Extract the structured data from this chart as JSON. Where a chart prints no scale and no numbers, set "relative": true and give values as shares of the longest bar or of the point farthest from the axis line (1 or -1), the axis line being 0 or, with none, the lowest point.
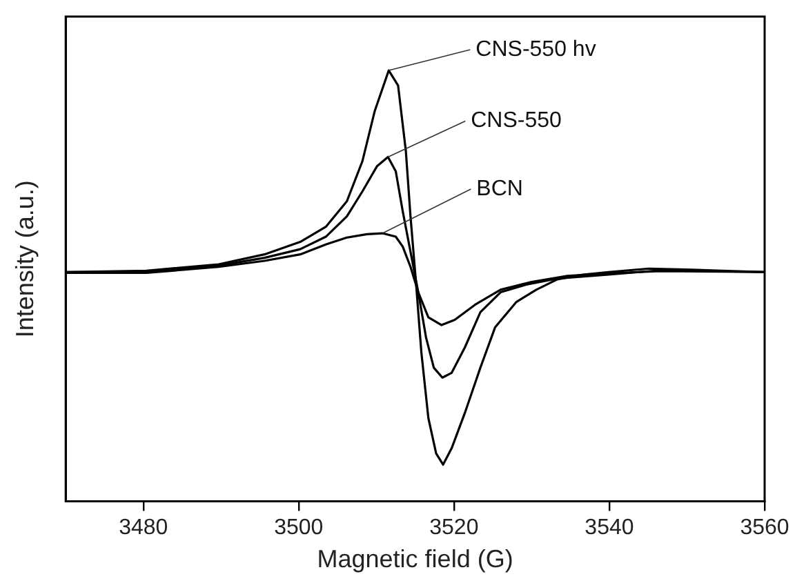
{
  "chart_data": {
    "type": "line",
    "xlabel": "Magnetic field (G)",
    "ylabel": "Intensity (a.u.)",
    "relative": true,
    "xlim": [
      3470,
      3560
    ],
    "xticks": [
      3480,
      3500,
      3520,
      3540,
      3560
    ],
    "grid": false,
    "legend": false,
    "marker": "none",
    "line_style": "solid",
    "series": [
      {
        "color": "#000000",
        "x": [
          3470,
          3480.4,
          3489.7,
          3495.6,
          3500.2,
          3503.5,
          3506.2,
          3508.2,
          3509.8,
          3511.6,
          3512.8,
          3513.8,
          3514.4,
          3515.1,
          3515.8,
          3516.7,
          3517.7,
          3518.6,
          3519.7,
          3521.4,
          3523.4,
          3525.3,
          3528.0,
          3530.6,
          3533.3,
          3536.6,
          3539.9,
          3545.1,
          3549.8,
          3560
        ],
        "values": [
          0.532,
          0.535,
          0.55,
          0.573,
          0.602,
          0.637,
          0.696,
          0.789,
          0.906,
          1,
          0.965,
          0.813,
          0.661,
          0.509,
          0.345,
          0.193,
          0.111,
          0.085,
          0.123,
          0.205,
          0.31,
          0.404,
          0.462,
          0.491,
          0.515,
          0.526,
          0.532,
          0.54,
          0.538,
          0.532
        ]
      },
      {
        "color": "#000000",
        "x": [
          3470,
          3480.4,
          3489.7,
          3495.6,
          3500.2,
          3503.5,
          3506.2,
          3508.2,
          3510.1,
          3511.5,
          3512.5,
          3513.4,
          3514.4,
          3515.4,
          3516.4,
          3517.4,
          3518.5,
          3519.7,
          3521.4,
          3523.4,
          3526.0,
          3529.3,
          3533.3,
          3539.9,
          3546.5,
          3560
        ],
        "values": [
          0.532,
          0.532,
          0.547,
          0.565,
          0.585,
          0.614,
          0.661,
          0.719,
          0.778,
          0.799,
          0.766,
          0.673,
          0.579,
          0.485,
          0.38,
          0.31,
          0.287,
          0.298,
          0.357,
          0.439,
          0.485,
          0.503,
          0.517,
          0.526,
          0.536,
          0.532
        ]
      },
      {
        "color": "#000000",
        "x": [
          3470,
          3480.4,
          3489.7,
          3495.6,
          3500.2,
          3503.5,
          3506.2,
          3508.8,
          3510.8,
          3512.5,
          3513.4,
          3514.4,
          3515.4,
          3516.7,
          3518.4,
          3520.1,
          3522.7,
          3526.0,
          3530.0,
          3534.6,
          3539.9,
          3546.5,
          3560
        ],
        "values": [
          0.53,
          0.53,
          0.544,
          0.558,
          0.573,
          0.596,
          0.612,
          0.62,
          0.622,
          0.614,
          0.591,
          0.544,
          0.485,
          0.427,
          0.409,
          0.421,
          0.456,
          0.491,
          0.509,
          0.523,
          0.529,
          0.534,
          0.532
        ]
      }
    ],
    "annotations": [
      {
        "text": "CNS-550 hv",
        "x": 3511.6,
        "y": 1
      },
      {
        "text": "CNS-550",
        "x": 3511.5,
        "y": 0.799
      },
      {
        "text": "BCN",
        "x": 3510.8,
        "y": 0.622
      }
    ]
  }
}
